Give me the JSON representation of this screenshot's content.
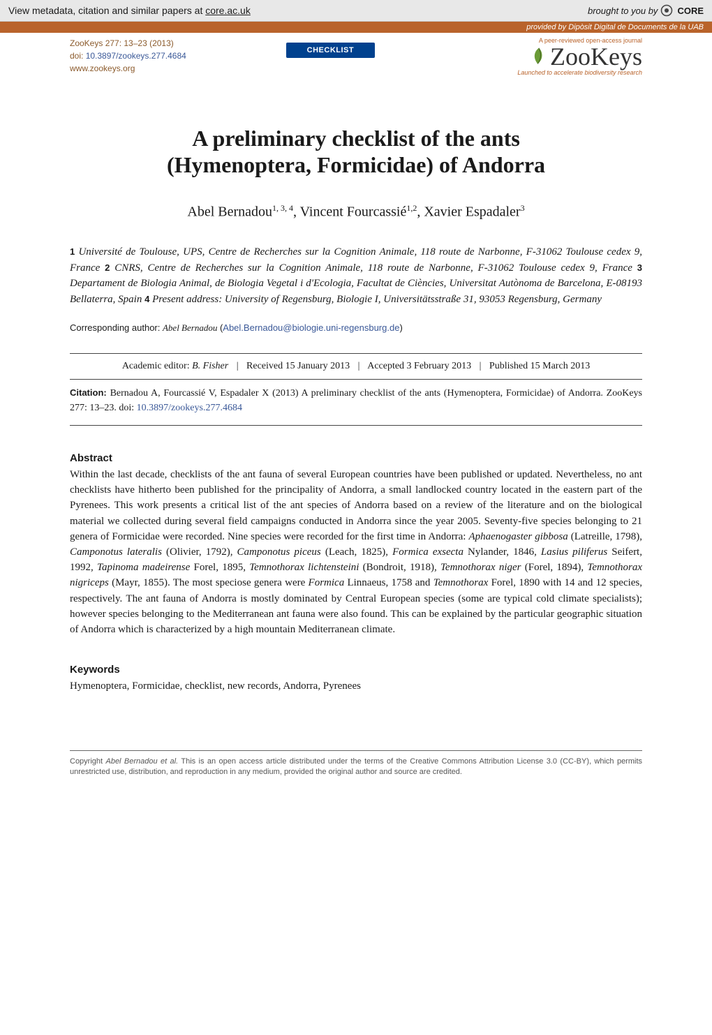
{
  "core_banner": {
    "left_prefix": "View metadata, citation and similar papers at ",
    "link_text": "core.ac.uk",
    "right_prefix": "brought to you by ",
    "logo_text": "CORE"
  },
  "provided_bar": {
    "prefix": "provided by ",
    "source": "Dipòsit Digital de Documents de la UAB"
  },
  "journal_box": {
    "citation": "ZooKeys 277: 13–23 (2013)",
    "doi_prefix": "doi: ",
    "doi": "10.3897/zookeys.277.4684",
    "url": "www.zookeys.org"
  },
  "checklist_label": "CHECKLIST",
  "zookeys_branding": {
    "tagline_top": "A peer-reviewed open-access journal",
    "logo_text": "ZooKeys",
    "tagline_bottom": "Launched to accelerate biodiversity research"
  },
  "article": {
    "title_line1": "A preliminary checklist of the ants",
    "title_line2": "(Hymenoptera, Formicidae) of Andorra",
    "authors_html": "Abel Bernadou<sup>1, 3, 4</sup>, Vincent Fourcassié<sup>1,2</sup>, Xavier Espadaler<sup>3</sup>",
    "affiliations": [
      {
        "num": "1",
        "text": " Université de Toulouse, UPS, Centre de Recherches sur la Cognition Animale, 118 route de Narbonne, F-31062 Toulouse cedex 9, France "
      },
      {
        "num": "2",
        "text": " CNRS, Centre de Recherches sur la Cognition Animale, 118 route de Narbonne, F-31062 Toulouse cedex 9, France "
      },
      {
        "num": "3",
        "text": " Departament de Biologia Animal, de Biologia Vegetal i d'Ecologia, Facultat de Ciències, Universitat Autònoma de Barcelona, E-08193 Bellaterra, Spain "
      },
      {
        "num": "4",
        "text": " Present address: University of Regensburg, Biologie I, Universitätsstraße 31, 93053 Regensburg, Germany"
      }
    ],
    "corresponding_label": "Corresponding author: ",
    "corresponding_name": "Abel Bernadou",
    "corresponding_email": "Abel.Bernadou@biologie.uni-regensburg.de"
  },
  "editorial": {
    "editor_label": "Academic editor: ",
    "editor_name": "B. Fisher",
    "received": "Received 15 January 2013",
    "accepted": "Accepted 3 February 2013",
    "published": "Published 15 March 2013"
  },
  "citation": {
    "label": "Citation: ",
    "text": "Bernadou A, Fourcassié V, Espadaler X (2013) A preliminary checklist of the ants (Hymenoptera, Formicidae) of Andorra. ZooKeys 277: 13–23. ",
    "doi_label": "doi: ",
    "doi": "10.3897/zookeys.277.4684"
  },
  "abstract": {
    "heading": "Abstract",
    "text_before_species": "Within the last decade, checklists of the ant fauna of several European countries have been published or updated. Nevertheless, no ant checklists have hitherto been published for the principality of Andorra, a small landlocked country located in the eastern part of the Pyrenees. This work presents a critical list of the ant species of Andorra based on a review of the literature and on the biological material we collected during several field campaigns conducted in Andorra since the year 2005. Seventy-five species belonging to 21 genera of Formicidae were recorded. Nine species were recorded for the first time in Andorra: ",
    "species_list": [
      {
        "name": "Aphaenogaster gibbosa",
        "auth": " (Latreille, 1798), "
      },
      {
        "name": "Camponotus lateralis",
        "auth": " (Olivier, 1792), "
      },
      {
        "name": "Camponotus piceus",
        "auth": " (Leach, 1825), "
      },
      {
        "name": "Formica exsecta",
        "auth": " Nylander, 1846, "
      },
      {
        "name": "Lasius piliferus",
        "auth": " Seifert, 1992, "
      },
      {
        "name": "Tapinoma madeirense",
        "auth": " Forel, 1895, "
      },
      {
        "name": "Temnothorax lichtensteini",
        "auth": " (Bondroit, 1918), "
      },
      {
        "name": "Temnothorax niger",
        "auth": " (Forel, 1894), "
      },
      {
        "name": "Temnothorax nigriceps",
        "auth": " (Mayr, 1855). "
      }
    ],
    "text_after_species_1": "The most speciose genera were ",
    "genus1": "Formica",
    "genus1_auth": " Linnaeus, 1758 and ",
    "genus2": "Temnothorax",
    "genus2_auth": " Forel, 1890 with 14 and 12 species, respectively. ",
    "text_tail": "The ant fauna of Andorra is mostly dominated by Central European species (some are typical cold climate specialists); however species belonging to the Mediterranean ant fauna were also found. This can be explained by the particular geographic situation of Andorra which is characterized by a high mountain Mediterranean climate."
  },
  "keywords": {
    "heading": "Keywords",
    "text": "Hymenoptera, Formicidae, checklist, new records, Andorra, Pyrenees"
  },
  "footer": {
    "prefix": "Copyright ",
    "authors": "Abel Bernadou et al.",
    "text": " This is an open access article distributed under the terms of the Creative Commons Attribution License 3.0 (CC-BY), which permits unrestricted use, distribution, and reproduction in any medium, provided the original author and source are credited."
  },
  "colors": {
    "core_bg": "#e8e8e8",
    "provided_bg": "#b9632b",
    "checklist_bg": "#00418e",
    "link_blue": "#3b5998",
    "journal_brown": "#8b5a2b"
  }
}
